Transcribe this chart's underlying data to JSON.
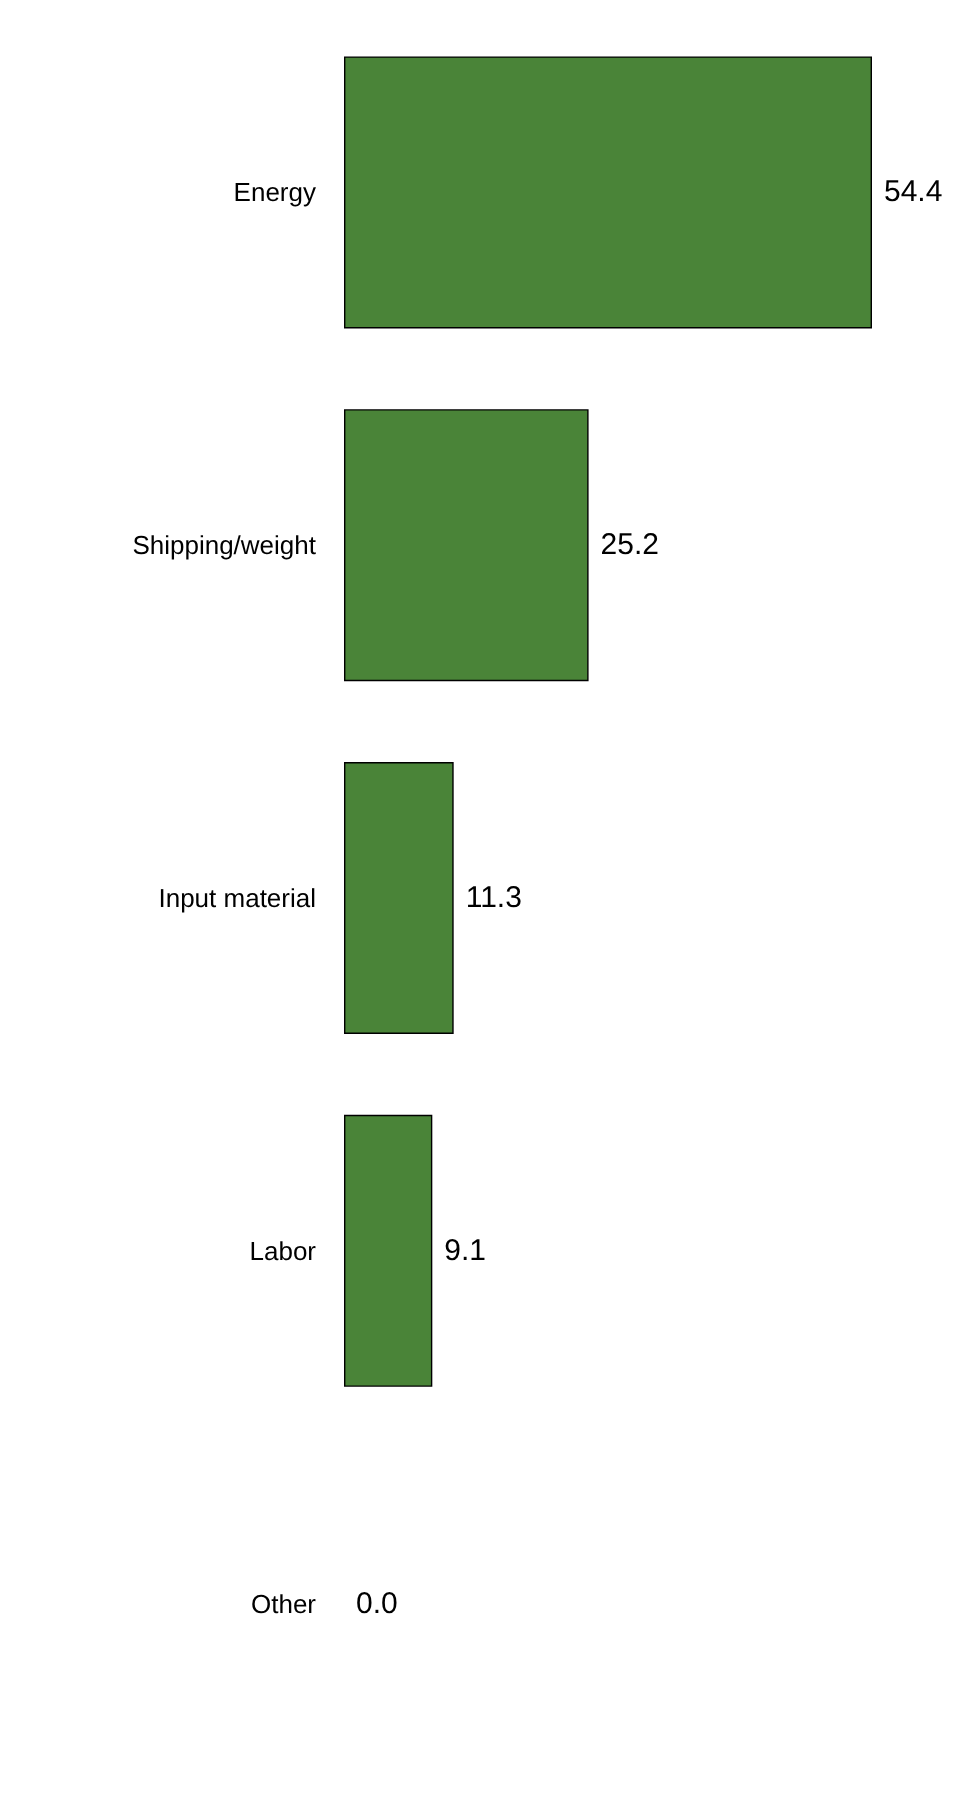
{
  "chart_data": {
    "type": "bar",
    "orientation": "horizontal",
    "categories": [
      "Energy",
      "Shipping/weight",
      "Input material",
      "Labor",
      "Other"
    ],
    "values": [
      54.4,
      25.2,
      11.3,
      9.1,
      0.0
    ],
    "value_labels": [
      "54.4",
      "25.2",
      "11.3",
      "9.1",
      "0.0"
    ],
    "color": "#4a8438"
  }
}
